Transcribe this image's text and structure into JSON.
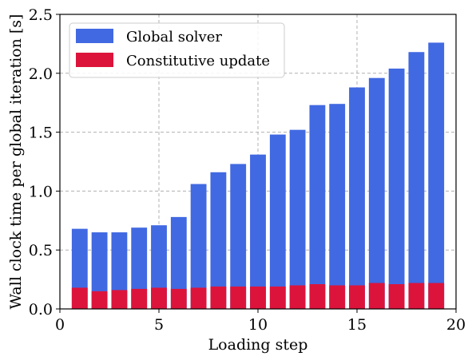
{
  "chart_data": {
    "type": "bar",
    "stacked": true,
    "xlabel": "Loading step",
    "ylabel": "Wall clock time per global iteration [s]",
    "xlim": [
      0,
      20
    ],
    "ylim": [
      0,
      2.5
    ],
    "xticks": [
      0,
      5,
      10,
      15,
      20
    ],
    "yticks": [
      0.0,
      0.5,
      1.0,
      1.5,
      2.0,
      2.5
    ],
    "xtick_labels": [
      "0",
      "5",
      "10",
      "15",
      "20"
    ],
    "ytick_labels": [
      "0.0",
      "0.5",
      "1.0",
      "1.5",
      "2.0",
      "2.5"
    ],
    "grid": true,
    "legend_position": "top-left",
    "x": [
      1,
      2,
      3,
      4,
      5,
      6,
      7,
      8,
      9,
      10,
      11,
      12,
      13,
      14,
      15,
      16,
      17,
      18,
      19
    ],
    "series": [
      {
        "name": "Global solver",
        "color": "#4169e1",
        "total_values": [
          0.68,
          0.65,
          0.65,
          0.69,
          0.71,
          0.78,
          1.06,
          1.16,
          1.23,
          1.31,
          1.48,
          1.52,
          1.73,
          1.74,
          1.88,
          1.96,
          2.04,
          2.18,
          2.26
        ]
      },
      {
        "name": "Constitutive update",
        "color": "#dc143c",
        "values": [
          0.18,
          0.15,
          0.16,
          0.17,
          0.18,
          0.17,
          0.18,
          0.19,
          0.19,
          0.19,
          0.19,
          0.2,
          0.21,
          0.2,
          0.2,
          0.22,
          0.21,
          0.22,
          0.22
        ]
      }
    ]
  }
}
